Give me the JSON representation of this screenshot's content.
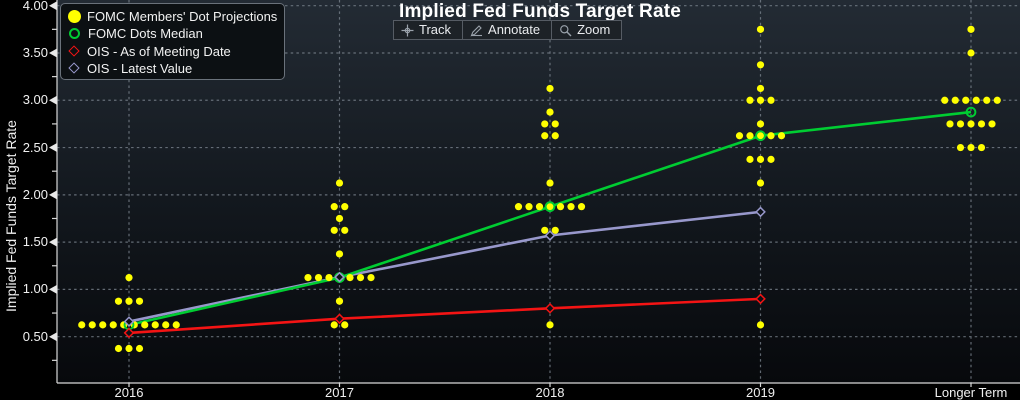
{
  "title": "Implied Fed Funds Target Rate",
  "toolbar": {
    "track": "Track",
    "annotate": "Annotate",
    "zoom": "Zoom"
  },
  "legend": [
    {
      "label": "FOMC Members' Dot Projections",
      "marker": "filled-circle",
      "color": "#ffff00"
    },
    {
      "label": "FOMC Dots Median",
      "marker": "open-circle",
      "color": "#00cd32"
    },
    {
      "label": "OIS - As of Meeting Date",
      "marker": "open-diamond",
      "color": "#f41414"
    },
    {
      "label": "OIS - Latest Value",
      "marker": "open-diamond",
      "color": "#9898cc"
    }
  ],
  "colors": {
    "dots": "#ffff00",
    "median": "#00cd32",
    "ois_meeting": "#f41414",
    "ois_latest": "#9898cc",
    "grid": "#79828c",
    "axis": "#d8d8d8",
    "plot_top": "#232b34",
    "plot_bottom": "#07090c",
    "background": "#000000"
  },
  "chart_data": {
    "type": "scatter",
    "title": "Implied Fed Funds Target Rate",
    "xlabel": "",
    "ylabel": "Implied Fed Funds  Target Rate",
    "categories": [
      "2016",
      "2017",
      "2018",
      "2019",
      "Longer Term"
    ],
    "yticks": [
      "4.00",
      "3.50",
      "3.00",
      "2.50",
      "2.00",
      "1.50",
      "1.00",
      "0.50"
    ],
    "ylim": [
      0.01,
      4.06
    ],
    "grid": true,
    "legend_position": "top-left",
    "series": [
      {
        "name": "FOMC Members' Dot Projections",
        "type": "dot-cluster",
        "color": "#ffff00",
        "points": [
          {
            "category": "2016",
            "value": 1.125,
            "count": 1
          },
          {
            "category": "2016",
            "value": 0.875,
            "count": 3
          },
          {
            "category": "2016",
            "value": 0.625,
            "count": 10
          },
          {
            "category": "2016",
            "value": 0.375,
            "count": 3
          },
          {
            "category": "2017",
            "value": 2.125,
            "count": 1
          },
          {
            "category": "2017",
            "value": 1.875,
            "count": 2
          },
          {
            "category": "2017",
            "value": 1.75,
            "count": 1
          },
          {
            "category": "2017",
            "value": 1.625,
            "count": 2
          },
          {
            "category": "2017",
            "value": 1.375,
            "count": 1
          },
          {
            "category": "2017",
            "value": 1.125,
            "count": 7
          },
          {
            "category": "2017",
            "value": 0.875,
            "count": 1
          },
          {
            "category": "2017",
            "value": 0.625,
            "count": 2
          },
          {
            "category": "2018",
            "value": 3.125,
            "count": 1
          },
          {
            "category": "2018",
            "value": 2.875,
            "count": 1
          },
          {
            "category": "2018",
            "value": 2.75,
            "count": 2
          },
          {
            "category": "2018",
            "value": 2.625,
            "count": 2
          },
          {
            "category": "2018",
            "value": 2.125,
            "count": 1
          },
          {
            "category": "2018",
            "value": 1.875,
            "count": 7
          },
          {
            "category": "2018",
            "value": 1.625,
            "count": 2
          },
          {
            "category": "2018",
            "value": 0.625,
            "count": 1
          },
          {
            "category": "2019",
            "value": 3.75,
            "count": 1
          },
          {
            "category": "2019",
            "value": 3.375,
            "count": 1
          },
          {
            "category": "2019",
            "value": 3.125,
            "count": 1
          },
          {
            "category": "2019",
            "value": 3.0,
            "count": 3
          },
          {
            "category": "2019",
            "value": 2.75,
            "count": 1
          },
          {
            "category": "2019",
            "value": 2.625,
            "count": 5
          },
          {
            "category": "2019",
            "value": 2.375,
            "count": 3
          },
          {
            "category": "2019",
            "value": 2.125,
            "count": 1
          },
          {
            "category": "2019",
            "value": 0.625,
            "count": 1
          },
          {
            "category": "Longer Term",
            "value": 3.75,
            "count": 1
          },
          {
            "category": "Longer Term",
            "value": 3.5,
            "count": 1
          },
          {
            "category": "Longer Term",
            "value": 3.0,
            "count": 6
          },
          {
            "category": "Longer Term",
            "value": 2.75,
            "count": 5
          },
          {
            "category": "Longer Term",
            "value": 2.5,
            "count": 3
          }
        ]
      },
      {
        "name": "FOMC Dots Median",
        "type": "line+open-circle",
        "color": "#00cd32",
        "x": [
          "2016",
          "2017",
          "2018",
          "2019",
          "Longer Term"
        ],
        "values": [
          0.625,
          1.125,
          1.875,
          2.625,
          2.875
        ]
      },
      {
        "name": "OIS - As of Meeting Date",
        "type": "line+open-diamond",
        "color": "#f41414",
        "x": [
          "2016",
          "2017",
          "2018",
          "2019"
        ],
        "values": [
          0.54,
          0.69,
          0.8,
          0.9
        ]
      },
      {
        "name": "OIS - Latest Value",
        "type": "line+open-diamond",
        "color": "#9898cc",
        "x": [
          "2016",
          "2017",
          "2018",
          "2019"
        ],
        "values": [
          0.66,
          1.13,
          1.57,
          1.82
        ]
      }
    ]
  }
}
